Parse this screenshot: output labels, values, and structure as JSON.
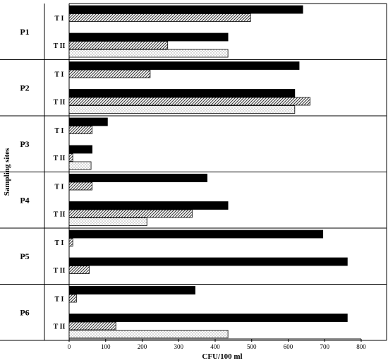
{
  "chart_data": {
    "type": "bar",
    "orientation": "horizontal",
    "xlabel": "CFU/100 ml",
    "ylabel": "Sampling sites",
    "xlim": [
      0,
      800
    ],
    "xticks": [
      "0",
      "100",
      "200",
      "300",
      "400",
      "500",
      "600",
      "700",
      "800"
    ],
    "grid": false,
    "legend": "none",
    "series_fills": [
      "solid-black",
      "diagonal-hatch",
      "dotted"
    ],
    "groups": [
      {
        "site": "P1",
        "rows": [
          {
            "period": "T I",
            "values": [
              640,
              497,
              null
            ]
          },
          {
            "period": "T II",
            "values": [
              435,
              270,
              435
            ]
          }
        ]
      },
      {
        "site": "P2",
        "rows": [
          {
            "period": "T I",
            "values": [
              630,
              222,
              null
            ]
          },
          {
            "period": "T II",
            "values": [
              618,
              660,
              618
            ]
          }
        ]
      },
      {
        "site": "P3",
        "rows": [
          {
            "period": "T I",
            "values": [
              105,
              63,
              null
            ]
          },
          {
            "period": "T II",
            "values": [
              63,
              10,
              60
            ]
          }
        ]
      },
      {
        "site": "P4",
        "rows": [
          {
            "period": "T I",
            "values": [
              378,
              63,
              null
            ]
          },
          {
            "period": "T II",
            "values": [
              435,
              337,
              213
            ]
          }
        ]
      },
      {
        "site": "P5",
        "rows": [
          {
            "period": "T I",
            "values": [
              695,
              10,
              null
            ]
          },
          {
            "period": "T II",
            "values": [
              762,
              55,
              null
            ]
          }
        ]
      },
      {
        "site": "P6",
        "rows": [
          {
            "period": "T I",
            "values": [
              345,
              20,
              null
            ]
          },
          {
            "period": "T II",
            "values": [
              762,
              128,
              435
            ]
          }
        ]
      }
    ]
  }
}
